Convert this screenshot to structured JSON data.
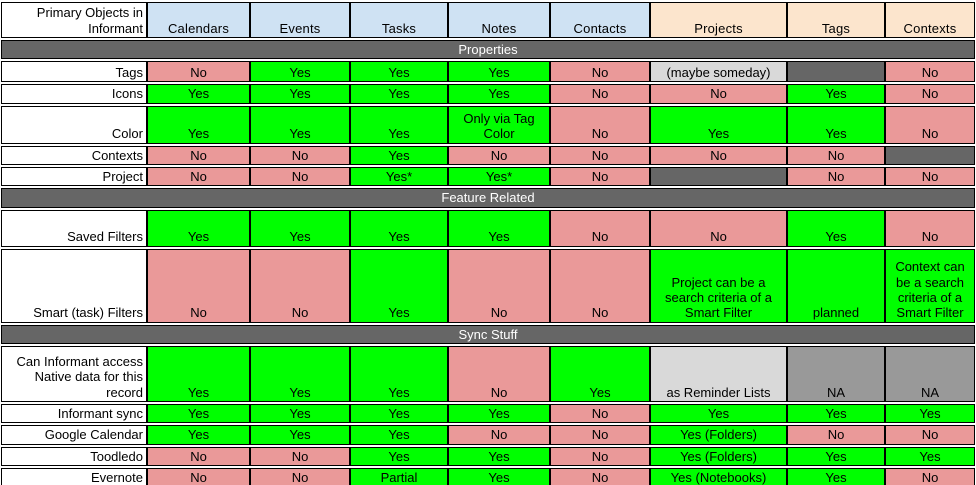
{
  "colors": {
    "yes": "#00ff00",
    "no": "#ea9999",
    "blank": "#666666",
    "note": "#d9d9d9",
    "na": "#999999",
    "header_blue": "#cfe2f3",
    "header_peach": "#fce5cd",
    "section_bar": "#666666",
    "border": "#000000",
    "section_text": "#ffffff",
    "cell_text": "#000000"
  },
  "chart_data": {
    "type": "table",
    "corner_label": "Primary Objects in Informant",
    "columns": [
      {
        "label": "Calendars",
        "group": "blue"
      },
      {
        "label": "Events",
        "group": "blue"
      },
      {
        "label": "Tasks",
        "group": "blue"
      },
      {
        "label": "Notes",
        "group": "blue"
      },
      {
        "label": "Contacts",
        "group": "blue"
      },
      {
        "label": "Projects",
        "group": "peach"
      },
      {
        "label": "Tags",
        "group": "peach"
      },
      {
        "label": "Contexts",
        "group": "peach"
      }
    ],
    "sections": [
      {
        "title": "Properties",
        "rows": [
          {
            "label": "Tags",
            "cells": [
              [
                "No",
                "no"
              ],
              [
                "Yes",
                "yes"
              ],
              [
                "Yes",
                "yes"
              ],
              [
                "Yes",
                "yes"
              ],
              [
                "No",
                "no"
              ],
              [
                "(maybe someday)",
                "note"
              ],
              [
                "",
                "blank"
              ],
              [
                "No",
                "no"
              ]
            ]
          },
          {
            "label": "Icons",
            "cells": [
              [
                "Yes",
                "yes"
              ],
              [
                "Yes",
                "yes"
              ],
              [
                "Yes",
                "yes"
              ],
              [
                "Yes",
                "yes"
              ],
              [
                "No",
                "no"
              ],
              [
                "No",
                "no"
              ],
              [
                "Yes",
                "yes"
              ],
              [
                "No",
                "no"
              ]
            ]
          },
          {
            "label": "Color",
            "cells": [
              [
                "Yes",
                "yes"
              ],
              [
                "Yes",
                "yes"
              ],
              [
                "Yes",
                "yes"
              ],
              [
                "Only via Tag Color",
                "yes"
              ],
              [
                "No",
                "no"
              ],
              [
                "Yes",
                "yes"
              ],
              [
                "Yes",
                "yes"
              ],
              [
                "No",
                "no"
              ]
            ]
          },
          {
            "label": "Contexts",
            "cells": [
              [
                "No",
                "no"
              ],
              [
                "No",
                "no"
              ],
              [
                "Yes",
                "yes"
              ],
              [
                "No",
                "no"
              ],
              [
                "No",
                "no"
              ],
              [
                "No",
                "no"
              ],
              [
                "No",
                "no"
              ],
              [
                "",
                "blank"
              ]
            ]
          },
          {
            "label": "Project",
            "cells": [
              [
                "No",
                "no"
              ],
              [
                "No",
                "no"
              ],
              [
                "Yes*",
                "yes"
              ],
              [
                "Yes*",
                "yes"
              ],
              [
                "No",
                "no"
              ],
              [
                "",
                "blank"
              ],
              [
                "No",
                "no"
              ],
              [
                "No",
                "no"
              ]
            ]
          }
        ]
      },
      {
        "title": "Feature Related",
        "rows": [
          {
            "label": "Saved Filters",
            "cells": [
              [
                "Yes",
                "yes"
              ],
              [
                "Yes",
                "yes"
              ],
              [
                "Yes",
                "yes"
              ],
              [
                "Yes",
                "yes"
              ],
              [
                "No",
                "no"
              ],
              [
                "No",
                "no"
              ],
              [
                "Yes",
                "yes"
              ],
              [
                "No",
                "no"
              ]
            ]
          },
          {
            "label": "Smart (task) Filters",
            "cells": [
              [
                "No",
                "no"
              ],
              [
                "No",
                "no"
              ],
              [
                "Yes",
                "yes"
              ],
              [
                "No",
                "no"
              ],
              [
                "No",
                "no"
              ],
              [
                "Project can be a search criteria of a Smart Filter",
                "yes"
              ],
              [
                "planned",
                "yes"
              ],
              [
                "Context can be a search criteria of a Smart Filter",
                "yes"
              ]
            ]
          }
        ]
      },
      {
        "title": "Sync Stuff",
        "rows": [
          {
            "label": "Can Informant access Native data for this record",
            "cells": [
              [
                "Yes",
                "yes"
              ],
              [
                "Yes",
                "yes"
              ],
              [
                "Yes",
                "yes"
              ],
              [
                "No",
                "no"
              ],
              [
                "Yes",
                "yes"
              ],
              [
                "as Reminder Lists",
                "note"
              ],
              [
                "NA",
                "na"
              ],
              [
                "NA",
                "na"
              ]
            ]
          },
          {
            "label": "Informant sync",
            "cells": [
              [
                "Yes",
                "yes"
              ],
              [
                "Yes",
                "yes"
              ],
              [
                "Yes",
                "yes"
              ],
              [
                "Yes",
                "yes"
              ],
              [
                "No",
                "no"
              ],
              [
                "Yes",
                "yes"
              ],
              [
                "Yes",
                "yes"
              ],
              [
                "Yes",
                "yes"
              ]
            ]
          },
          {
            "label": "Google Calendar",
            "cells": [
              [
                "Yes",
                "yes"
              ],
              [
                "Yes",
                "yes"
              ],
              [
                "Yes",
                "yes"
              ],
              [
                "No",
                "no"
              ],
              [
                "No",
                "no"
              ],
              [
                "Yes (Folders)",
                "yes"
              ],
              [
                "No",
                "no"
              ],
              [
                "No",
                "no"
              ]
            ]
          },
          {
            "label": "Toodledo",
            "cells": [
              [
                "No",
                "no"
              ],
              [
                "No",
                "no"
              ],
              [
                "Yes",
                "yes"
              ],
              [
                "Yes",
                "yes"
              ],
              [
                "No",
                "no"
              ],
              [
                "Yes (Folders)",
                "yes"
              ],
              [
                "Yes",
                "yes"
              ],
              [
                "Yes",
                "yes"
              ]
            ]
          },
          {
            "label": "Evernote",
            "cells": [
              [
                "No",
                "no"
              ],
              [
                "No",
                "no"
              ],
              [
                "Partial",
                "yes"
              ],
              [
                "Yes",
                "yes"
              ],
              [
                "No",
                "no"
              ],
              [
                "Yes (Notebooks)",
                "yes"
              ],
              [
                "Yes",
                "yes"
              ],
              [
                "No",
                "no"
              ]
            ]
          }
        ]
      }
    ]
  }
}
